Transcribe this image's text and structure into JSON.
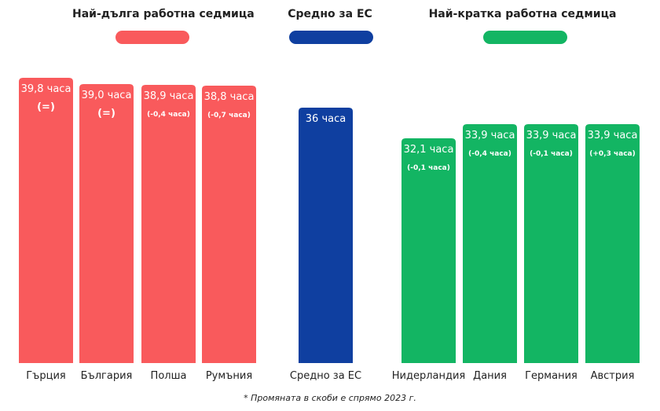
{
  "groups": [
    {
      "title": "Най-дълга работна седмица",
      "color": "#F95A5C"
    },
    {
      "title": "Средно за ЕС",
      "color": "#0F3FA0"
    },
    {
      "title": "Най-кратка работна седмица",
      "color": "#13B563"
    }
  ],
  "footnote": "* Промяната в скоби е спрямо 2023 г.",
  "chart_data": {
    "type": "bar",
    "categories": [
      "Гърция",
      "България",
      "Полша",
      "Румъния",
      "Средно за ЕС",
      "Нидерландия",
      "Дания",
      "Германия",
      "Австрия"
    ],
    "values": [
      39.8,
      39.0,
      38.9,
      38.8,
      36,
      32.1,
      33.9,
      33.9,
      33.9
    ],
    "value_labels": [
      "39,8 часа",
      "39,0 часа",
      "38,9 часа",
      "38,8 часа",
      "36 часа",
      "32,1 часа",
      "33,9 часа",
      "33,9 часа",
      "33,9 часа"
    ],
    "change_labels": [
      "(=)",
      "(=)",
      "(-0,4 часа)",
      "(-0,7 часа)",
      "",
      "(-0,1 часа)",
      "(-0,4 часа)",
      "(-0,1 часа)",
      "(+0,3 часа)"
    ],
    "group_index": [
      0,
      0,
      0,
      0,
      1,
      2,
      2,
      2,
      2
    ],
    "colors": {
      "longest": "#F95A5C",
      "eu_average": "#0F3FA0",
      "shortest": "#13B563"
    }
  }
}
